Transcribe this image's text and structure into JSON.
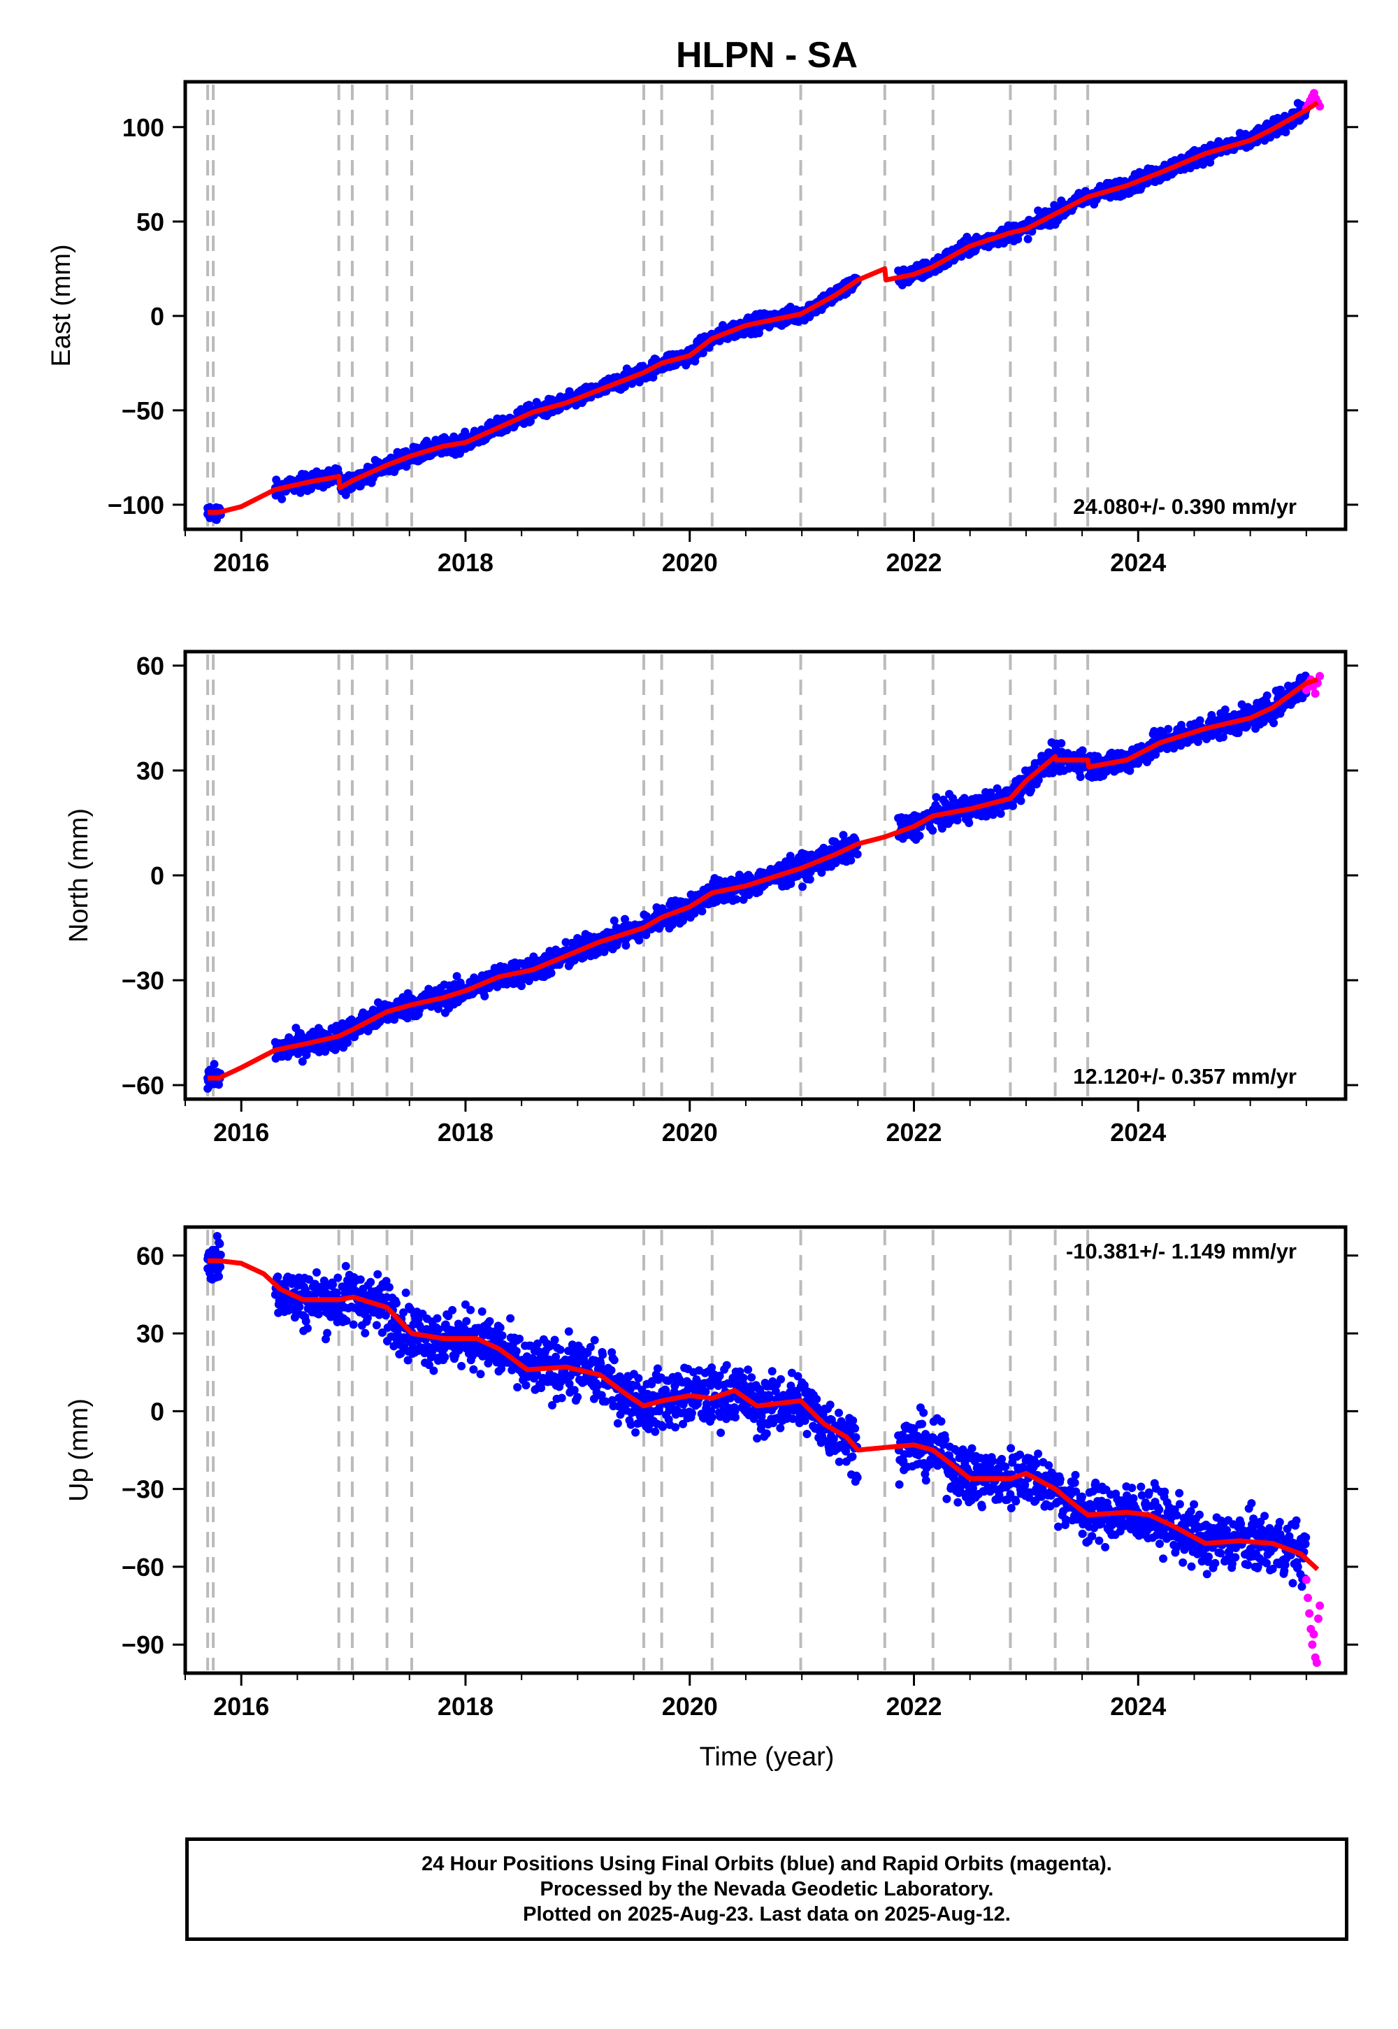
{
  "title": "HLPN - SA",
  "xlabel": "Time (year)",
  "colors": {
    "final": "#0000ff",
    "rapid": "#ff00ff",
    "fit": "#ff0000",
    "event_lines": "#bbbbbb"
  },
  "footer": {
    "line1": "24 Hour Positions Using Final Orbits (blue) and Rapid Orbits (magenta).",
    "line2": "Processed by the Nevada Geodetic Laboratory.",
    "line3": "Plotted on 2025-Aug-23. Last data on 2025-Aug-12."
  },
  "chart_data": [
    {
      "type": "scatter",
      "component": "East",
      "ylabel": "East (mm)",
      "rate_label": "24.080+/- 0.390 mm/yr",
      "xlim": [
        2015.5,
        2025.85
      ],
      "ylim": [
        -113,
        124
      ],
      "xticks": [
        2016,
        2018,
        2020,
        2022,
        2024
      ],
      "yticks": [
        -100,
        -50,
        0,
        50,
        100
      ],
      "event_lines": [
        2015.7,
        2015.75,
        2016.87,
        2016.99,
        2017.3,
        2017.52,
        2019.59,
        2019.75,
        2020.2,
        2020.99,
        2021.74,
        2022.17,
        2022.86,
        2023.26,
        2023.55
      ],
      "gaps": [
        [
          2015.82,
          2016.3
        ],
        [
          2021.5,
          2021.86
        ]
      ],
      "scatter": 2.2,
      "rapid": {
        "x_start": 2025.5,
        "x_end": 2025.62,
        "values": [
          110,
          112,
          114,
          116,
          118,
          115,
          113,
          111
        ]
      },
      "fit": {
        "x": [
          2015.7,
          2015.8,
          2016.0,
          2016.3,
          2016.6,
          2016.87,
          2016.88,
          2017.0,
          2017.3,
          2017.52,
          2017.8,
          2018.0,
          2018.3,
          2018.6,
          2018.9,
          2019.2,
          2019.59,
          2019.75,
          2020.0,
          2020.2,
          2020.5,
          2020.99,
          2021.3,
          2021.5,
          2021.74,
          2021.75,
          2022.0,
          2022.17,
          2022.5,
          2022.86,
          2023.0,
          2023.26,
          2023.55,
          2023.9,
          2024.2,
          2024.6,
          2025.0,
          2025.2,
          2025.5,
          2025.6
        ],
        "y": [
          -104,
          -104,
          -101,
          -92,
          -88,
          -85,
          -91,
          -87,
          -79,
          -74,
          -69,
          -67,
          -59,
          -51,
          -46,
          -39,
          -30,
          -25,
          -21,
          -12,
          -5,
          1,
          11,
          19,
          25,
          19,
          22,
          26,
          37,
          44,
          46,
          54,
          63,
          69,
          76,
          86,
          93,
          99,
          109,
          113
        ]
      },
      "final": {
        "x": [
          2015.7,
          2015.72,
          2015.75,
          2015.78,
          2015.8
        ],
        "y": [
          -105,
          -107,
          -103,
          -108,
          -104
        ]
      }
    },
    {
      "type": "scatter",
      "component": "North",
      "ylabel": "North (mm)",
      "rate_label": "12.120+/- 0.357 mm/yr",
      "xlim": [
        2015.5,
        2025.85
      ],
      "ylim": [
        -64,
        64
      ],
      "xticks": [
        2016,
        2018,
        2020,
        2022,
        2024
      ],
      "yticks": [
        -60,
        -30,
        0,
        30,
        60
      ],
      "event_lines": [
        2015.7,
        2015.75,
        2016.87,
        2016.99,
        2017.3,
        2017.52,
        2019.59,
        2019.75,
        2020.2,
        2020.99,
        2021.74,
        2022.17,
        2022.86,
        2023.26,
        2023.55
      ],
      "gaps": [
        [
          2015.82,
          2016.3
        ],
        [
          2021.5,
          2021.86
        ]
      ],
      "scatter": 1.8,
      "rapid": {
        "x_start": 2025.5,
        "x_end": 2025.62,
        "values": [
          53,
          55,
          56,
          54,
          52,
          55,
          57
        ]
      },
      "fit": {
        "x": [
          2015.7,
          2015.8,
          2016.0,
          2016.3,
          2016.6,
          2016.87,
          2017.0,
          2017.3,
          2017.52,
          2017.8,
          2018.0,
          2018.3,
          2018.6,
          2018.9,
          2019.2,
          2019.59,
          2019.75,
          2020.0,
          2020.2,
          2020.5,
          2020.99,
          2021.3,
          2021.5,
          2021.74,
          2022.0,
          2022.17,
          2022.5,
          2022.86,
          2023.0,
          2023.26,
          2023.27,
          2023.55,
          2023.56,
          2023.9,
          2024.2,
          2024.6,
          2025.0,
          2025.2,
          2025.5,
          2025.6
        ],
        "y": [
          -58,
          -58,
          -55,
          -50,
          -48,
          -46,
          -44,
          -39,
          -37,
          -35,
          -33,
          -29,
          -27,
          -23,
          -19,
          -15,
          -12,
          -9,
          -5,
          -3,
          2,
          6,
          9,
          11,
          14,
          17,
          19,
          22,
          27,
          34,
          33,
          33,
          31,
          33,
          38,
          42,
          45,
          48,
          55,
          56
        ]
      },
      "final": {
        "x": [
          2015.7,
          2015.72,
          2015.75,
          2015.78,
          2015.8
        ],
        "y": [
          -58,
          -60,
          -59,
          -57,
          -58
        ]
      }
    },
    {
      "type": "scatter",
      "component": "Up",
      "ylabel": "Up (mm)",
      "rate_label": "-10.381+/- 1.149 mm/yr",
      "xlim": [
        2015.5,
        2025.85
      ],
      "ylim": [
        -101,
        71
      ],
      "xticks": [
        2016,
        2018,
        2020,
        2022,
        2024
      ],
      "yticks": [
        -90,
        -60,
        -30,
        0,
        30,
        60
      ],
      "event_lines": [
        2015.7,
        2015.75,
        2016.87,
        2016.99,
        2017.3,
        2017.52,
        2019.59,
        2019.75,
        2020.2,
        2020.99,
        2021.74,
        2022.17,
        2022.86,
        2023.26,
        2023.55
      ],
      "gaps": [
        [
          2015.82,
          2016.3
        ],
        [
          2021.5,
          2021.86
        ]
      ],
      "scatter": 5.5,
      "rapid": {
        "x_start": 2025.5,
        "x_end": 2025.62,
        "values": [
          -65,
          -72,
          -78,
          -84,
          -90,
          -86,
          -95,
          -97,
          -80,
          -75
        ]
      },
      "fit": {
        "x": [
          2015.7,
          2015.8,
          2016.0,
          2016.2,
          2016.35,
          2016.55,
          2016.87,
          2017.0,
          2017.3,
          2017.52,
          2017.8,
          2018.1,
          2018.3,
          2018.55,
          2018.9,
          2019.2,
          2019.45,
          2019.59,
          2019.75,
          2020.0,
          2020.2,
          2020.4,
          2020.6,
          2020.99,
          2021.2,
          2021.4,
          2021.5,
          2021.74,
          2022.0,
          2022.17,
          2022.5,
          2022.86,
          2023.0,
          2023.26,
          2023.4,
          2023.55,
          2023.9,
          2024.1,
          2024.3,
          2024.6,
          2024.9,
          2025.2,
          2025.45,
          2025.6
        ],
        "y": [
          58,
          58,
          57,
          53,
          47,
          43,
          43,
          44,
          40,
          30,
          28,
          28,
          24,
          16,
          17,
          14,
          6,
          2,
          4,
          6,
          5,
          8,
          2,
          4,
          -5,
          -10,
          -15,
          -14,
          -13,
          -15,
          -26,
          -26,
          -24,
          -30,
          -35,
          -40,
          -39,
          -40,
          -44,
          -51,
          -50,
          -51,
          -55,
          -61
        ]
      },
      "final": {
        "x": [
          2015.7,
          2015.72,
          2015.75,
          2015.78,
          2015.8
        ],
        "y": [
          55,
          60,
          62,
          58,
          65
        ]
      }
    }
  ]
}
